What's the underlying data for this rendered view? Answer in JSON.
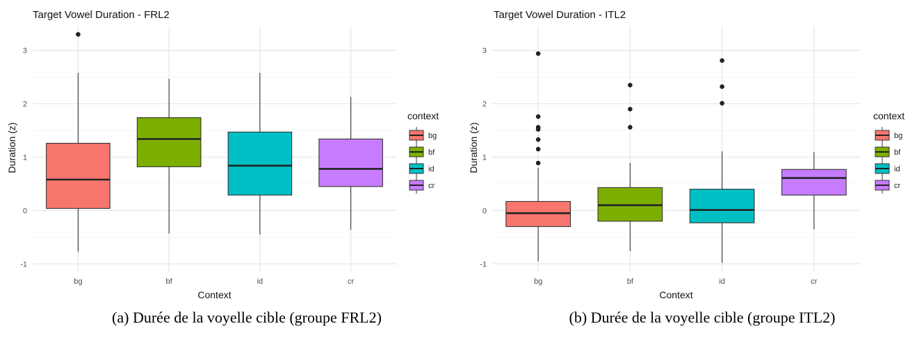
{
  "captions": [
    "(a) Durée de la voyelle cible (groupe FRL2)",
    "(b) Durée de la voyelle cible (groupe ITL2)"
  ],
  "chart_data": [
    {
      "type": "boxplot",
      "title": "Target Vowel Duration -  FRL2",
      "xlabel": "Context",
      "ylabel": "Duration (z)",
      "ylim": [
        -1.15,
        3.45
      ],
      "yticks": [
        -1,
        0,
        1,
        2,
        3
      ],
      "categories": [
        "bg",
        "bf",
        "id",
        "cr"
      ],
      "legend_title": "context",
      "legend_position": "right",
      "grid": true,
      "colors": [
        "#F8766D",
        "#7CAE00",
        "#00BFC4",
        "#C77CFF"
      ],
      "boxes": [
        {
          "category": "bg",
          "whisker_low": -0.77,
          "q1": 0.04,
          "median": 0.58,
          "q3": 1.26,
          "whisker_high": 2.58,
          "outliers": [
            3.3
          ]
        },
        {
          "category": "bf",
          "whisker_low": -0.43,
          "q1": 0.82,
          "median": 1.34,
          "q3": 1.74,
          "whisker_high": 2.47,
          "outliers": []
        },
        {
          "category": "id",
          "whisker_low": -0.45,
          "q1": 0.29,
          "median": 0.84,
          "q3": 1.47,
          "whisker_high": 2.58,
          "outliers": []
        },
        {
          "category": "cr",
          "whisker_low": -0.36,
          "q1": 0.45,
          "median": 0.78,
          "q3": 1.34,
          "whisker_high": 2.13,
          "outliers": []
        }
      ]
    },
    {
      "type": "boxplot",
      "title": "Target Vowel Duration -  ITL2",
      "xlabel": "Context",
      "ylabel": "Duration (z)",
      "ylim": [
        -1.15,
        3.45
      ],
      "yticks": [
        -1,
        0,
        1,
        2,
        3
      ],
      "categories": [
        "bg",
        "bf",
        "id",
        "cr"
      ],
      "legend_title": "context",
      "legend_position": "right",
      "grid": true,
      "colors": [
        "#F8766D",
        "#7CAE00",
        "#00BFC4",
        "#C77CFF"
      ],
      "boxes": [
        {
          "category": "bg",
          "whisker_low": -0.95,
          "q1": -0.3,
          "median": -0.05,
          "q3": 0.17,
          "whisker_high": 0.8,
          "outliers": [
            0.89,
            1.15,
            1.33,
            1.52,
            1.56,
            1.76,
            2.94
          ]
        },
        {
          "category": "bf",
          "whisker_low": -0.76,
          "q1": -0.2,
          "median": 0.1,
          "q3": 0.43,
          "whisker_high": 0.89,
          "outliers": [
            1.56,
            1.9,
            2.35
          ]
        },
        {
          "category": "id",
          "whisker_low": -0.98,
          "q1": -0.23,
          "median": 0.01,
          "q3": 0.4,
          "whisker_high": 1.11,
          "outliers": [
            2.01,
            2.32,
            2.81
          ]
        },
        {
          "category": "cr",
          "whisker_low": -0.35,
          "q1": 0.29,
          "median": 0.61,
          "q3": 0.77,
          "whisker_high": 1.1,
          "outliers": []
        }
      ]
    }
  ]
}
